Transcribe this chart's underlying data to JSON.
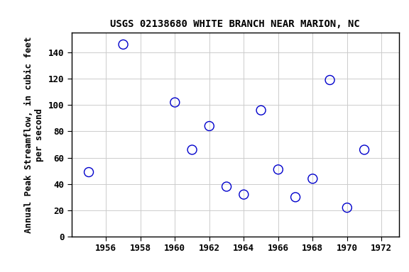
{
  "title": "USGS 02138680 WHITE BRANCH NEAR MARION, NC",
  "ylabel": "Annual Peak Streamflow, in cubic feet\nper second",
  "years": [
    1955,
    1957,
    1960,
    1961,
    1962,
    1963,
    1964,
    1965,
    1966,
    1967,
    1968,
    1969,
    1970,
    1971
  ],
  "flows": [
    49,
    146,
    102,
    66,
    84,
    38,
    32,
    96,
    51,
    30,
    44,
    119,
    22,
    66
  ],
  "xlim": [
    1954,
    1973
  ],
  "ylim": [
    0,
    155
  ],
  "xticks": [
    1956,
    1958,
    1960,
    1962,
    1964,
    1966,
    1968,
    1970,
    1972
  ],
  "yticks": [
    0,
    20,
    40,
    60,
    80,
    100,
    120,
    140
  ],
  "marker_color": "#0000cc",
  "marker_size": 5,
  "grid_color": "#cccccc",
  "bg_color": "#ffffff",
  "title_fontsize": 10,
  "label_fontsize": 9,
  "tick_fontsize": 9
}
